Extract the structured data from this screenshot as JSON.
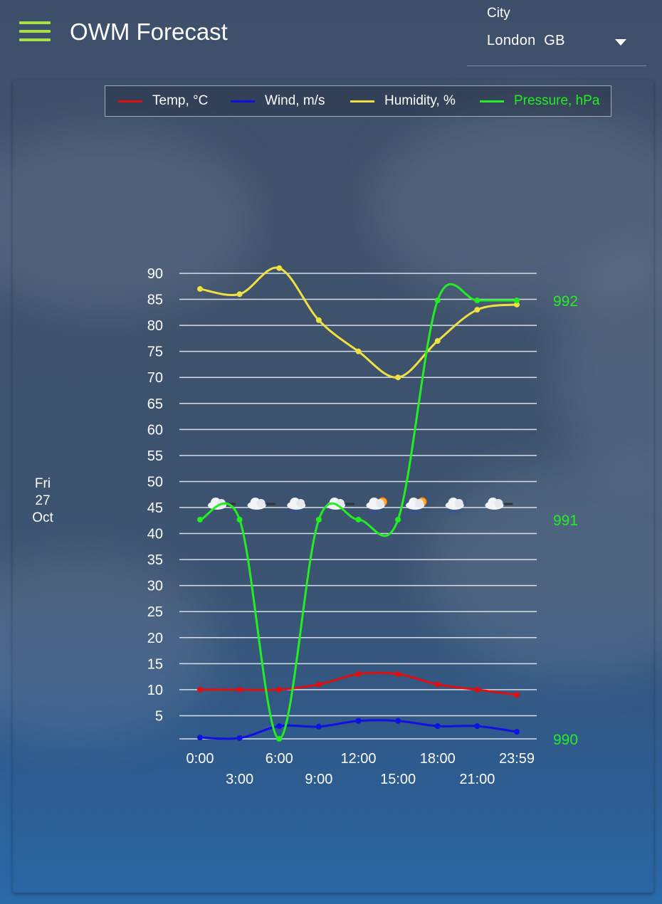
{
  "header": {
    "title": "OWM Forecast",
    "city_label": "City",
    "city_value": "London  GB",
    "menu_icon": "hamburger-icon",
    "dropdown_icon": "caret-down-icon"
  },
  "colors": {
    "accent": "#a8e04a",
    "temp": "#e01010",
    "wind": "#1010e0",
    "humidity": "#f0e040",
    "pressure": "#22ee22"
  },
  "legend": [
    {
      "label": "Temp, °C",
      "color": "#e01010",
      "text_color": "#ffffff"
    },
    {
      "label": "Wind, m/s",
      "color": "#1010e0",
      "text_color": "#ffffff"
    },
    {
      "label": "Humidity, %",
      "color": "#f0e040",
      "text_color": "#ffffff"
    },
    {
      "label": "Pressure, hPa",
      "color": "#22ee22",
      "text_color": "#22ee22"
    }
  ],
  "day": {
    "weekday": "Fri",
    "day": "27",
    "month": "Oct"
  },
  "chart_data": {
    "type": "line",
    "x": [
      "0:00",
      "3:00",
      "6:00",
      "9:00",
      "12:00",
      "15:00",
      "18:00",
      "21:00",
      "23:59"
    ],
    "x_tick_labels_row1": [
      "0:00",
      "6:00",
      "12:00",
      "18:00",
      "23:59"
    ],
    "x_tick_labels_row2": [
      "3:00",
      "9:00",
      "15:00",
      "21:00"
    ],
    "ylim": [
      0,
      90
    ],
    "y_ticks": [
      5,
      10,
      15,
      20,
      25,
      30,
      35,
      40,
      45,
      50,
      55,
      60,
      65,
      70,
      75,
      80,
      85,
      90
    ],
    "y2lim": [
      990,
      992
    ],
    "y2_ticks": [
      990,
      991,
      992
    ],
    "grid": true,
    "legend_position": "top",
    "series": [
      {
        "name": "Temp, °C",
        "axis": "left",
        "values": [
          10,
          10,
          10,
          11,
          13,
          13,
          11,
          10,
          9
        ]
      },
      {
        "name": "Wind, m/s",
        "axis": "left",
        "values": [
          0.8,
          0.7,
          3,
          2.9,
          4,
          4,
          3,
          3,
          1.9
        ]
      },
      {
        "name": "Humidity, %",
        "axis": "left",
        "values": [
          87,
          86,
          91,
          81,
          75,
          70,
          77,
          83,
          84
        ]
      },
      {
        "name": "Pressure, hPa",
        "axis": "right",
        "values": [
          991,
          991,
          990,
          991,
          991,
          991,
          992,
          992,
          992
        ]
      }
    ],
    "weather_icons": [
      "cloudy-night-icon",
      "cloudy-night-icon",
      "rain-cloud-icon",
      "cloudy-night-icon",
      "rain-sun-icon",
      "rain-sun-icon",
      "rain-cloud-icon",
      "cloudy-night-icon"
    ]
  }
}
